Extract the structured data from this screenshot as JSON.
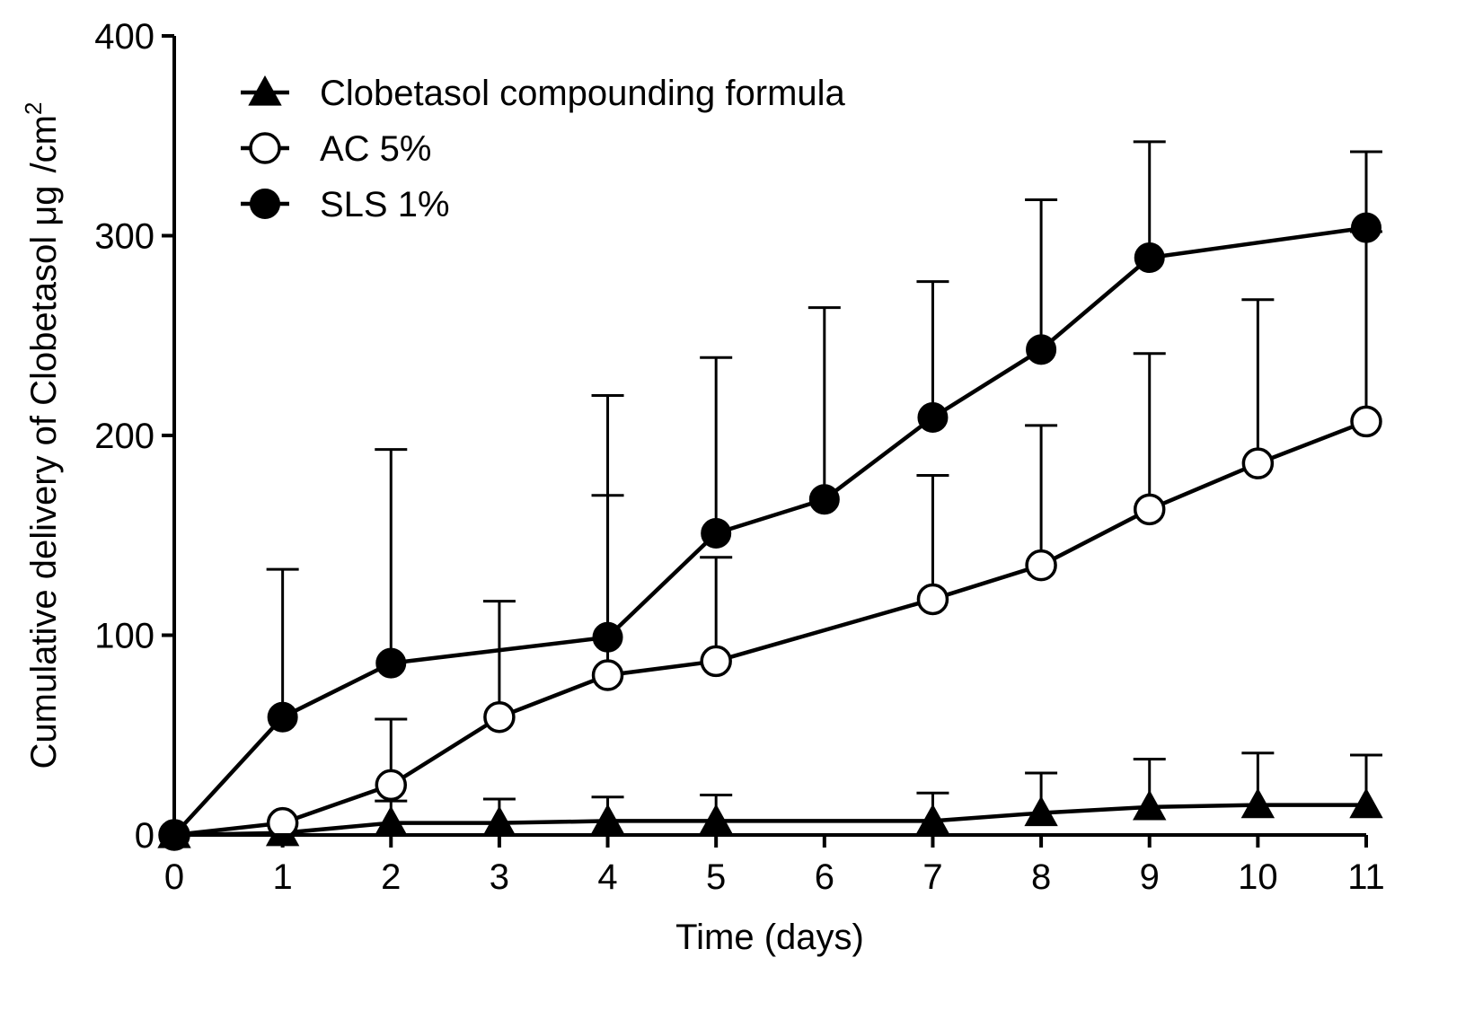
{
  "chart_data": {
    "type": "line",
    "title": "",
    "xlabel": "Time (days)",
    "ylabel_main": "Cumulative delivery of Clobetasol μg",
    "ylabel_unit": "/cm",
    "ylabel_sup": "2",
    "xlim": [
      0,
      11
    ],
    "ylim": [
      0,
      400
    ],
    "x_ticks": [
      0,
      1,
      2,
      3,
      4,
      5,
      6,
      7,
      8,
      9,
      10,
      11
    ],
    "y_ticks": [
      0,
      100,
      200,
      300,
      400
    ],
    "grid": false,
    "legend_position": "top-left",
    "series": [
      {
        "name": "Clobetasol compounding formula",
        "marker": "triangle-filled",
        "x": [
          0,
          1,
          2,
          3,
          4,
          5,
          7,
          8,
          9,
          10,
          11
        ],
        "values": [
          0,
          1,
          6,
          6,
          7,
          7,
          7,
          11,
          14,
          15,
          15
        ],
        "error_upper": [
          0,
          0,
          17,
          18,
          19,
          20,
          21,
          31,
          38,
          41,
          40
        ]
      },
      {
        "name": "AC 5%",
        "marker": "circle-open",
        "x": [
          0,
          1,
          2,
          3,
          4,
          5,
          7,
          8,
          9,
          10,
          11
        ],
        "values": [
          0,
          6,
          25,
          59,
          80,
          87,
          118,
          135,
          163,
          186,
          207
        ],
        "error_upper": [
          0,
          0,
          58,
          117,
          170,
          139,
          180,
          205,
          241,
          268,
          302
        ]
      },
      {
        "name": "SLS 1%",
        "marker": "circle-filled",
        "x": [
          0,
          1,
          2,
          4,
          5,
          6,
          7,
          8,
          9,
          11
        ],
        "values": [
          0,
          59,
          86,
          99,
          151,
          168,
          209,
          243,
          289,
          304
        ],
        "error_upper": [
          0,
          133,
          193,
          220,
          239,
          264,
          277,
          318,
          347,
          342
        ]
      }
    ]
  }
}
